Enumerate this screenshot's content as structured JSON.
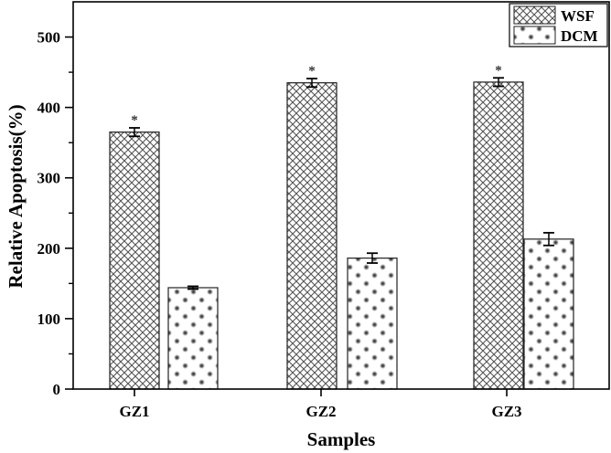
{
  "chart_data": {
    "type": "bar",
    "title": "",
    "xlabel": "Samples",
    "ylabel": "Relative Apoptosis(%)",
    "ylim": [
      0,
      550
    ],
    "yticks": [
      0,
      100,
      200,
      300,
      400,
      500
    ],
    "categories": [
      "GZ1",
      "GZ2",
      "GZ3"
    ],
    "series": [
      {
        "name": "WSF",
        "pattern": "crosshatch",
        "values": [
          365,
          435,
          436
        ],
        "errors": [
          6,
          6,
          6
        ],
        "significance": [
          "*",
          "*",
          "*"
        ]
      },
      {
        "name": "DCM",
        "pattern": "dots",
        "values": [
          144,
          186,
          213
        ],
        "errors": [
          2,
          7,
          9
        ],
        "significance": [
          "",
          "",
          ""
        ]
      }
    ],
    "legend_position": "top-right",
    "grid": false,
    "colors": {
      "axis": "#000000",
      "pattern": "#444444",
      "background": "#ffffff"
    }
  }
}
